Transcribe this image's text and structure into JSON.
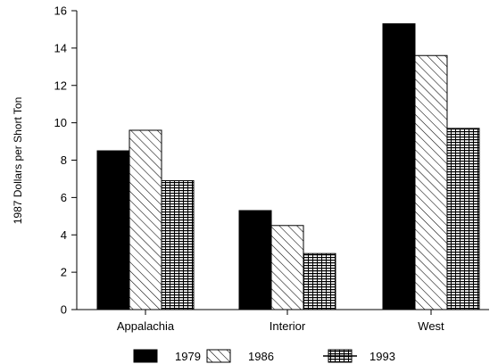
{
  "chart_data": {
    "type": "bar",
    "categories": [
      "Appalachia",
      "Interior",
      "West"
    ],
    "series": [
      {
        "name": "1979",
        "values": [
          8.5,
          5.3,
          15.3
        ],
        "pattern": "solid"
      },
      {
        "name": "1986",
        "values": [
          9.6,
          4.5,
          13.6
        ],
        "pattern": "diagonal-hatch"
      },
      {
        "name": "1993",
        "values": [
          6.9,
          3.0,
          9.7
        ],
        "pattern": "grid-hatch"
      }
    ],
    "ylabel": "1987 Dollars per Short Ton",
    "xlabel": "",
    "ylim": [
      0,
      16
    ],
    "yticks": [
      0,
      2,
      4,
      6,
      8,
      10,
      12,
      14,
      16
    ],
    "grid": false,
    "legend_position": "bottom",
    "colors": {
      "bar_fill": "#000000",
      "stroke": "#000000",
      "background": "#ffffff"
    }
  }
}
